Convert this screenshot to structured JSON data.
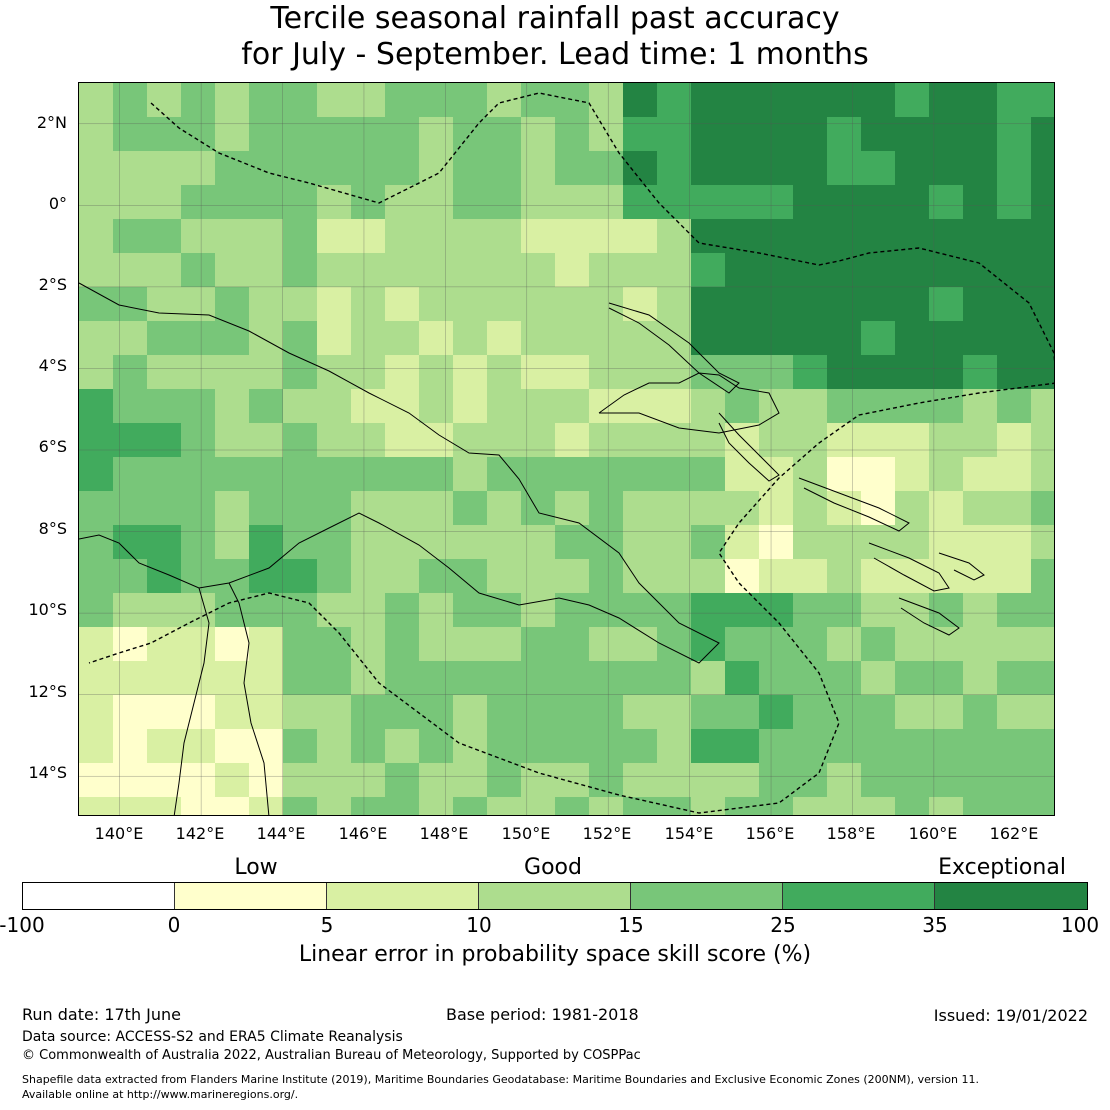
{
  "title": {
    "line1": "Tercile seasonal rainfall past accuracy",
    "line2": "for July - September. Lead time: 1 months"
  },
  "map": {
    "lat_labels": [
      "2°N",
      "0°",
      "2°S",
      "4°S",
      "6°S",
      "8°S",
      "10°S",
      "12°S",
      "14°S"
    ],
    "lon_labels": [
      "140°E",
      "142°E",
      "144°E",
      "146°E",
      "148°E",
      "150°E",
      "152°E",
      "154°E",
      "156°E",
      "158°E",
      "160°E",
      "162°E"
    ],
    "lat_range": [
      -15,
      3
    ],
    "lon_range": [
      139,
      163
    ]
  },
  "colorbar": {
    "category_labels": [
      "Low",
      "Good",
      "Exceptional"
    ],
    "ticks": [
      "-100",
      "0",
      "5",
      "10",
      "15",
      "25",
      "35",
      "100"
    ],
    "colors": [
      "#ffffff",
      "#ffffcc",
      "#d9f0a3",
      "#addd8e",
      "#78c679",
      "#41ab5d",
      "#238443"
    ],
    "label": "Linear error in probability space skill score (%)"
  },
  "footer": {
    "run_date": "Run date: 17th June",
    "base_period": "Base period: 1981-2018",
    "issued": "Issued: 19/01/2022",
    "data_source": "Data source: ACCESS-S2 and ERA5 Climate Reanalysis",
    "copyright": "© Commonwealth of Australia 2022, Australian Bureau of Meteorology, Supported by COSPPac",
    "shapefile_line1": "Shapefile data extracted from Flanders Marine Institute (2019), Maritime Boundaries Geodatabase: Maritime Boundaries and Exclusive Economic Zones (200NM), version 11.",
    "shapefile_line2": "Available online at http://www.marineregions.org/."
  }
}
